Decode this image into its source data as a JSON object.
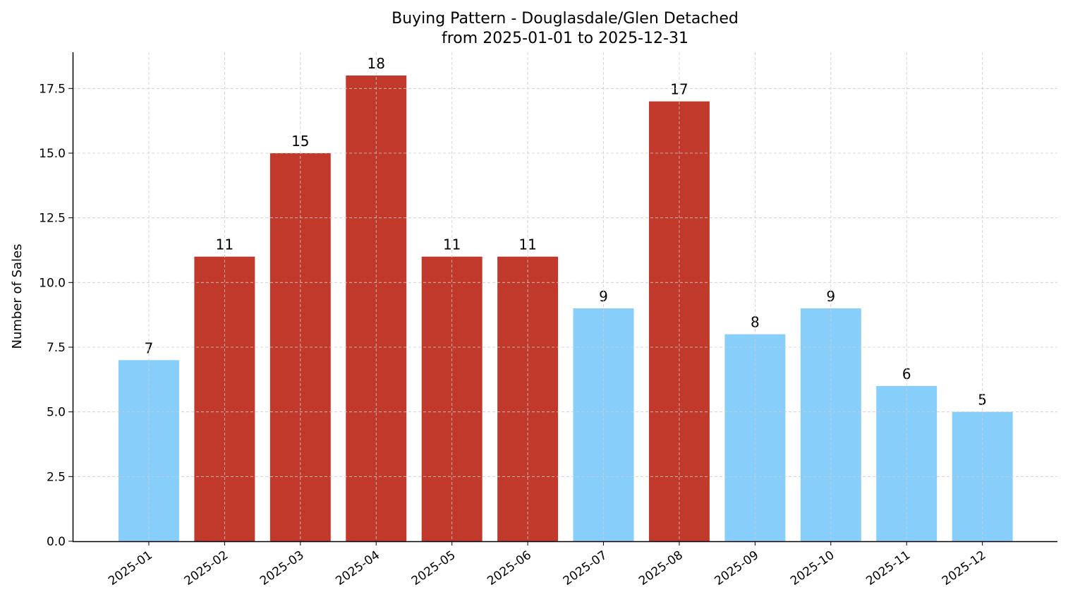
{
  "chart_data": {
    "type": "bar",
    "title": "Buying Pattern - Douglasdale/Glen Detached",
    "subtitle": "from 2025-01-01 to 2025-12-31",
    "xlabel": "",
    "ylabel": "Number of Sales",
    "categories": [
      "2025-01",
      "2025-02",
      "2025-03",
      "2025-04",
      "2025-05",
      "2025-06",
      "2025-07",
      "2025-08",
      "2025-09",
      "2025-10",
      "2025-11",
      "2025-12"
    ],
    "values": [
      7,
      11,
      15,
      18,
      11,
      11,
      9,
      17,
      8,
      9,
      6,
      5
    ],
    "highlight": [
      false,
      true,
      true,
      true,
      true,
      true,
      false,
      true,
      false,
      false,
      false,
      false
    ],
    "colors": {
      "highlight": "#c0392b",
      "normal": "#87cefa"
    },
    "ylim": [
      0,
      18.9
    ],
    "yticks": [
      0,
      2.5,
      5,
      7.5,
      10,
      12.5,
      15,
      17.5
    ],
    "ytick_labels": [
      "0.0",
      "2.5",
      "5.0",
      "7.5",
      "10.0",
      "12.5",
      "15.0",
      "17.5"
    ],
    "grid": true,
    "legend": "none"
  }
}
